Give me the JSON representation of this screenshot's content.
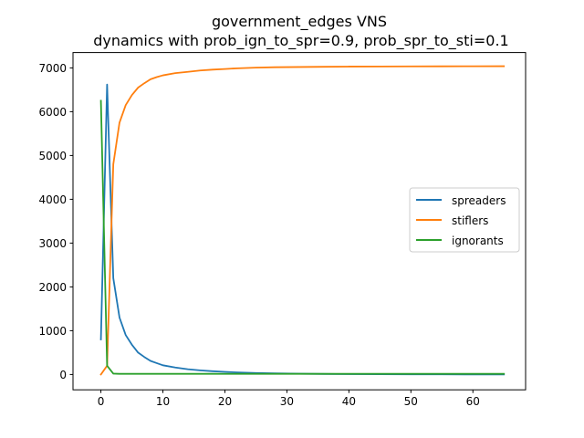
{
  "chart_data": {
    "type": "line",
    "title": "government_edges VNS",
    "subtitle": "dynamics with prob_ign_to_spr=0.9, prob_spr_to_sti=0.1",
    "xlabel": "",
    "ylabel": "",
    "xlim": [
      -4.5,
      68.5
    ],
    "ylim": [
      -350,
      7350
    ],
    "x_ticks": [
      0,
      10,
      20,
      30,
      40,
      50,
      60
    ],
    "y_ticks": [
      0,
      1000,
      2000,
      3000,
      4000,
      5000,
      6000,
      7000
    ],
    "grid": false,
    "legend_position": "center-right",
    "series": [
      {
        "name": "spreaders",
        "color": "#1f77b4",
        "x": [
          0,
          1,
          2,
          3,
          4,
          5,
          6,
          7,
          8,
          9,
          10,
          12,
          14,
          16,
          18,
          20,
          22,
          25,
          28,
          32,
          36,
          40,
          45,
          50,
          55,
          60,
          65
        ],
        "y": [
          800,
          6620,
          2200,
          1300,
          900,
          680,
          500,
          400,
          310,
          260,
          210,
          160,
          120,
          95,
          75,
          60,
          48,
          35,
          25,
          18,
          12,
          8,
          5,
          4,
          3,
          2,
          2
        ]
      },
      {
        "name": "stiflers",
        "color": "#ff7f0e",
        "x": [
          0,
          1,
          2,
          3,
          4,
          5,
          6,
          7,
          8,
          9,
          10,
          12,
          14,
          16,
          18,
          20,
          22,
          25,
          28,
          32,
          36,
          40,
          45,
          50,
          55,
          60,
          65
        ],
        "y": [
          0,
          200,
          4800,
          5750,
          6150,
          6380,
          6550,
          6650,
          6740,
          6790,
          6830,
          6880,
          6910,
          6940,
          6960,
          6975,
          6990,
          7005,
          7015,
          7020,
          7025,
          7030,
          7032,
          7035,
          7036,
          7037,
          7038
        ]
      },
      {
        "name": "ignorants",
        "color": "#2ca02c",
        "x": [
          0,
          1,
          2,
          3,
          4,
          5,
          10,
          20,
          30,
          40,
          50,
          60,
          65
        ],
        "y": [
          6250,
          200,
          20,
          15,
          15,
          15,
          15,
          15,
          15,
          15,
          15,
          15,
          15
        ]
      }
    ]
  }
}
